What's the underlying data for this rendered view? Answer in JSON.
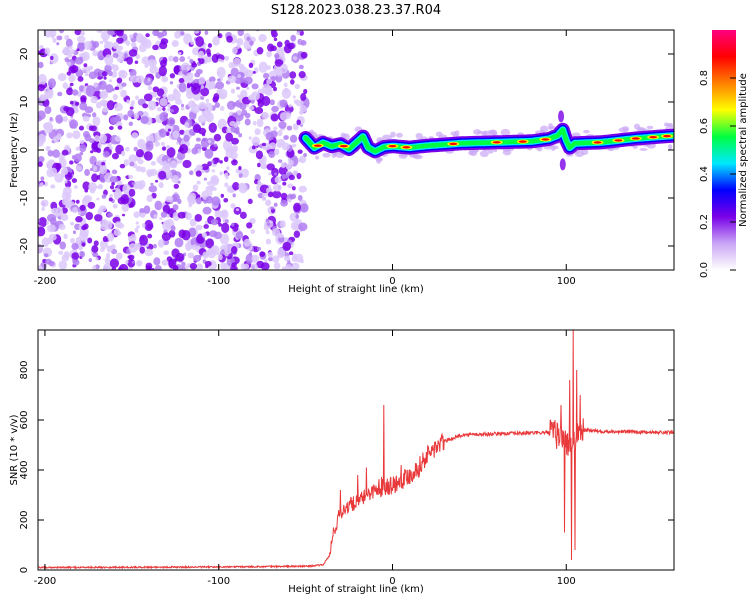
{
  "title": "S128.2023.038.23.37.R04",
  "chart_data": [
    {
      "type": "heatmap",
      "xlabel": "Height of straight line (km)",
      "ylabel": "Frequency (Hz)",
      "xlim": [
        -204,
        162
      ],
      "ylim": [
        -25,
        25
      ],
      "x_ticks": [
        -200,
        -100,
        0,
        100
      ],
      "y_ticks": [
        -20,
        -10,
        0,
        10,
        20
      ],
      "grid": false,
      "noise_region_x": [
        -204,
        -50
      ],
      "ridge": {
        "x": [
          -50,
          -45,
          -40,
          -35,
          -30,
          -25,
          -20,
          -17,
          -14,
          -10,
          -5,
          0,
          10,
          20,
          40,
          60,
          80,
          90,
          95,
          98,
          100,
          102,
          105,
          120,
          140,
          162
        ],
        "frequency": [
          2.5,
          0.5,
          1.5,
          0.8,
          1.2,
          0.2,
          1.8,
          2.8,
          0.5,
          -0.3,
          0.6,
          0.8,
          0.5,
          0.9,
          1.4,
          1.6,
          1.8,
          2.3,
          3.0,
          4.2,
          2.0,
          0.5,
          1.4,
          1.6,
          2.4,
          3.0
        ]
      },
      "colorbar": {
        "label": "Normalized spectral amplitude",
        "range": [
          0.0,
          1.0
        ],
        "ticks": [
          0.0,
          0.2,
          0.4,
          0.6,
          0.8
        ],
        "colors": [
          "#ffffff",
          "#c9a6f5",
          "#7a00e8",
          "#0000ff",
          "#00e8ff",
          "#00ff40",
          "#ffff00",
          "#ff8000",
          "#ff0000",
          "#ff0080"
        ]
      }
    },
    {
      "type": "line",
      "xlabel": "Height of straight line (km)",
      "ylabel": "SNR (10 * v/v)",
      "xlim": [
        -204,
        162
      ],
      "ylim": [
        0,
        960
      ],
      "x_ticks": [
        -200,
        -100,
        0,
        100
      ],
      "y_ticks": [
        0,
        200,
        400,
        600,
        800
      ],
      "grid": false,
      "color": "#e8383a",
      "envelope": {
        "x": [
          -204,
          -100,
          -50,
          -40,
          -36,
          -34,
          -30,
          -25,
          -20,
          -15,
          -10,
          -5,
          0,
          5,
          10,
          15,
          20,
          25,
          30,
          40,
          60,
          80,
          90,
          95,
          98,
          100,
          102,
          104,
          106,
          108,
          110,
          120,
          140,
          162
        ],
        "y": [
          10,
          12,
          15,
          20,
          60,
          150,
          230,
          260,
          270,
          300,
          320,
          340,
          340,
          360,
          380,
          410,
          460,
          490,
          515,
          540,
          545,
          548,
          550,
          540,
          530,
          500,
          520,
          480,
          540,
          560,
          560,
          555,
          552,
          550
        ]
      },
      "spikes": [
        {
          "x": -30,
          "y": 320
        },
        {
          "x": -20,
          "y": 380
        },
        {
          "x": -15,
          "y": 410
        },
        {
          "x": -5,
          "y": 660
        },
        {
          "x": 5,
          "y": 420
        },
        {
          "x": 97,
          "y": 660
        },
        {
          "x": 99,
          "y": 150
        },
        {
          "x": 102,
          "y": 760
        },
        {
          "x": 103,
          "y": 40
        },
        {
          "x": 104,
          "y": 960
        },
        {
          "x": 105,
          "y": 80
        },
        {
          "x": 106,
          "y": 800
        },
        {
          "x": 108,
          "y": 700
        }
      ]
    }
  ]
}
